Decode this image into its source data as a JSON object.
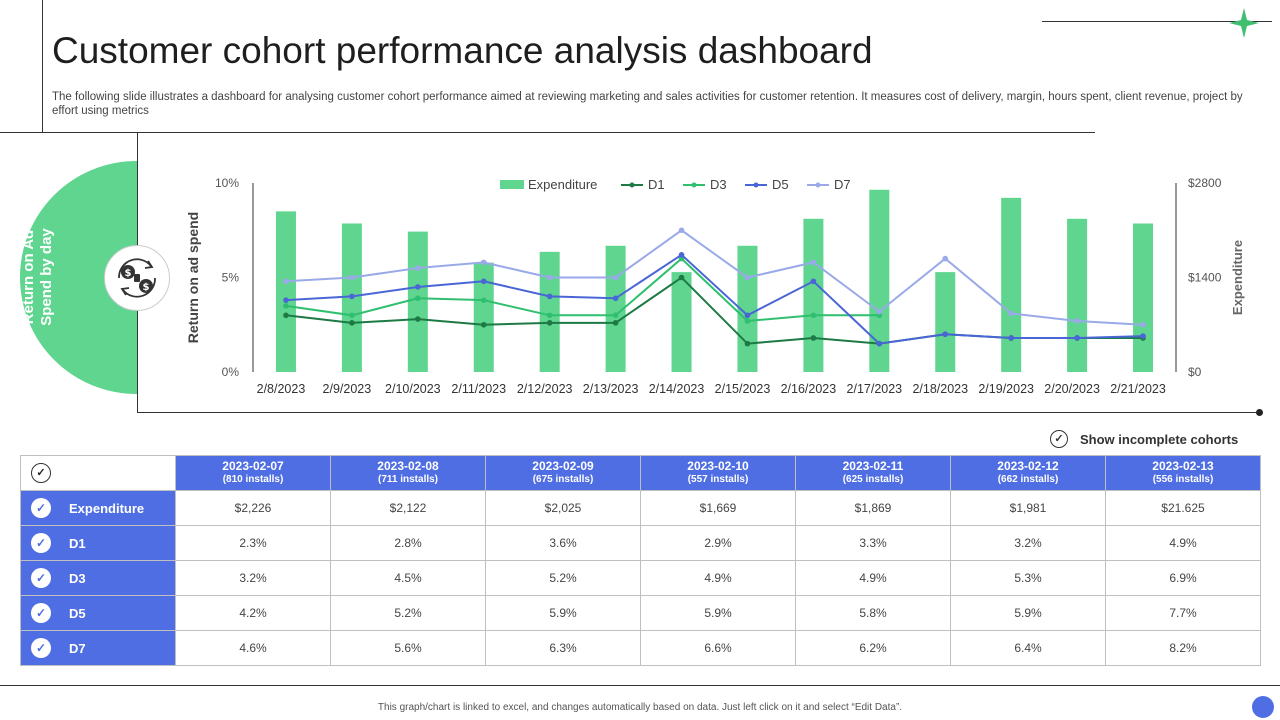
{
  "header": {
    "title": "Customer cohort performance analysis dashboard",
    "subtitle": "The following slide illustrates a dashboard for analysing customer cohort performance aimed at reviewing marketing and sales activities for customer retention. It measures cost of delivery, margin, hours spent, client revenue, project by effort using metrics"
  },
  "side_panel": {
    "label": "Return on Ad Spend by day",
    "icon": "money-exchange-icon"
  },
  "colors": {
    "accent_green": "#5fd58f",
    "table_blue": "#4f6ee4",
    "d1": "#1e7a45",
    "d3": "#2fbf6f",
    "d5": "#4a66d6",
    "d7": "#9aaae8"
  },
  "chart_data": {
    "type": "bar",
    "categories": [
      "2/8/2023",
      "2/9/2023",
      "2/10/2023",
      "2/11/2023",
      "2/12/2023",
      "2/13/2023",
      "2/14/2023",
      "2/15/2023",
      "2/16/2023",
      "2/17/2023",
      "2/18/2023",
      "2/19/2023",
      "2/20/2023",
      "2/21/2023"
    ],
    "ylabel_left": "Return on ad spend",
    "ylabel_right": "Expenditure",
    "left_ticks": [
      "0%",
      "5%",
      "10%"
    ],
    "right_ticks": [
      "$0",
      "$1400",
      "$2800"
    ],
    "ylim_left": [
      0,
      10
    ],
    "ylim_right": [
      0,
      2800
    ],
    "legend_position": "top",
    "bar_series": {
      "name": "Expenditure",
      "axis": "right",
      "values": [
        2380,
        2200,
        2080,
        1620,
        1780,
        1870,
        1480,
        1870,
        2270,
        2700,
        1480,
        2580,
        2270,
        2200
      ]
    },
    "series": [
      {
        "name": "D1",
        "axis": "left",
        "values": [
          3.0,
          2.6,
          2.8,
          2.5,
          2.6,
          2.6,
          5.0,
          1.5,
          1.8,
          1.5,
          2.0,
          1.8,
          1.8,
          1.8
        ]
      },
      {
        "name": "D3",
        "axis": "left",
        "values": [
          3.5,
          3.0,
          3.9,
          3.8,
          3.0,
          3.0,
          6.0,
          2.7,
          3.0,
          3.0,
          null,
          null,
          null,
          null
        ]
      },
      {
        "name": "D5",
        "axis": "left",
        "values": [
          3.8,
          4.0,
          4.5,
          4.8,
          4.0,
          3.9,
          6.2,
          3.0,
          4.8,
          1.5,
          2.0,
          1.8,
          1.8,
          1.9
        ]
      },
      {
        "name": "D7",
        "axis": "left",
        "values": [
          4.8,
          5.0,
          5.5,
          5.8,
          5.0,
          5.0,
          7.5,
          5.0,
          5.8,
          3.2,
          6.0,
          3.1,
          2.7,
          2.5
        ]
      }
    ]
  },
  "cohorts_toggle": {
    "label": "Show incomplete cohorts"
  },
  "table": {
    "columns": [
      {
        "date": "2023-02-07",
        "installs": "(810 installs)"
      },
      {
        "date": "2023-02-08",
        "installs": "(711 installs)"
      },
      {
        "date": "2023-02-09",
        "installs": "(675 installs)"
      },
      {
        "date": "2023-02-10",
        "installs": "(557 installs)"
      },
      {
        "date": "2023-02-11",
        "installs": "(625 installs)"
      },
      {
        "date": "2023-02-12",
        "installs": "(662 installs)"
      },
      {
        "date": "2023-02-13",
        "installs": "(556 installs)"
      }
    ],
    "rows": [
      {
        "label": "Expenditure",
        "values": [
          "$2,226",
          "$2,122",
          "$2,025",
          "$1,669",
          "$1,869",
          "$1,981",
          "$21.625"
        ]
      },
      {
        "label": "D1",
        "values": [
          "2.3%",
          "2.8%",
          "3.6%",
          "2.9%",
          "3.3%",
          "3.2%",
          "4.9%"
        ]
      },
      {
        "label": "D3",
        "values": [
          "3.2%",
          "4.5%",
          "5.2%",
          "4.9%",
          "4.9%",
          "5.3%",
          "6.9%"
        ]
      },
      {
        "label": "D5",
        "values": [
          "4.2%",
          "5.2%",
          "5.9%",
          "5.9%",
          "5.8%",
          "5.9%",
          "7.7%"
        ]
      },
      {
        "label": "D7",
        "values": [
          "4.6%",
          "5.6%",
          "6.3%",
          "6.6%",
          "6.2%",
          "6.4%",
          "8.2%"
        ]
      }
    ]
  },
  "footer": {
    "note": "This graph/chart is linked to excel, and changes automatically based on data. Just left click on it and select “Edit Data”."
  }
}
